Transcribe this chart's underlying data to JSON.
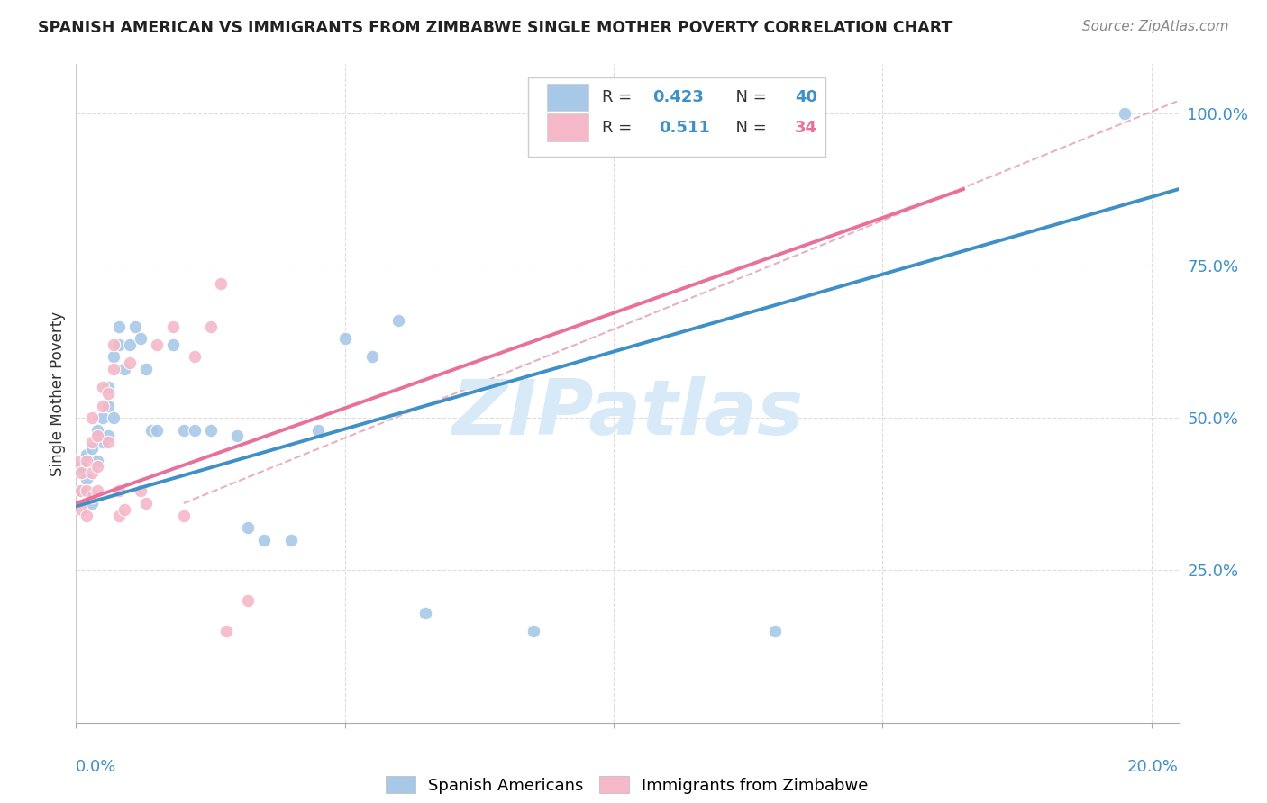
{
  "title": "SPANISH AMERICAN VS IMMIGRANTS FROM ZIMBABWE SINGLE MOTHER POVERTY CORRELATION CHART",
  "source": "Source: ZipAtlas.com",
  "ylabel": "Single Mother Poverty",
  "blue_color": "#a8c8e8",
  "pink_color": "#f4b8c8",
  "line_blue": "#4090c8",
  "line_pink": "#e8709a",
  "line_dashed_color": "#e8b0c0",
  "watermark_color": "#d8eaf8",
  "ytick_color": "#4090c8",
  "blue_r": "0.423",
  "blue_n": "40",
  "pink_r": "0.511",
  "pink_n": "34",
  "blue_scatter_x": [
    0.001,
    0.001,
    0.002,
    0.002,
    0.003,
    0.003,
    0.004,
    0.004,
    0.005,
    0.005,
    0.006,
    0.006,
    0.006,
    0.007,
    0.007,
    0.008,
    0.008,
    0.009,
    0.01,
    0.011,
    0.012,
    0.013,
    0.014,
    0.015,
    0.018,
    0.02,
    0.022,
    0.025,
    0.03,
    0.032,
    0.035,
    0.04,
    0.045,
    0.05,
    0.055,
    0.06,
    0.065,
    0.085,
    0.13,
    0.195
  ],
  "blue_scatter_y": [
    0.38,
    0.42,
    0.4,
    0.44,
    0.36,
    0.45,
    0.43,
    0.48,
    0.46,
    0.5,
    0.47,
    0.52,
    0.55,
    0.5,
    0.6,
    0.65,
    0.62,
    0.58,
    0.62,
    0.65,
    0.63,
    0.58,
    0.48,
    0.48,
    0.62,
    0.48,
    0.48,
    0.48,
    0.47,
    0.32,
    0.3,
    0.3,
    0.48,
    0.63,
    0.6,
    0.66,
    0.18,
    0.15,
    0.15,
    1.0
  ],
  "pink_scatter_x": [
    0.0,
    0.001,
    0.001,
    0.001,
    0.002,
    0.002,
    0.002,
    0.003,
    0.003,
    0.003,
    0.003,
    0.004,
    0.004,
    0.004,
    0.005,
    0.005,
    0.006,
    0.006,
    0.007,
    0.007,
    0.008,
    0.008,
    0.009,
    0.01,
    0.012,
    0.013,
    0.015,
    0.018,
    0.02,
    0.022,
    0.025,
    0.027,
    0.028,
    0.032
  ],
  "pink_scatter_y": [
    0.43,
    0.38,
    0.41,
    0.35,
    0.34,
    0.38,
    0.43,
    0.37,
    0.41,
    0.46,
    0.5,
    0.38,
    0.42,
    0.47,
    0.52,
    0.55,
    0.46,
    0.54,
    0.58,
    0.62,
    0.38,
    0.34,
    0.35,
    0.59,
    0.38,
    0.36,
    0.62,
    0.65,
    0.34,
    0.6,
    0.65,
    0.72,
    0.15,
    0.2
  ],
  "xlim": [
    0.0,
    0.205
  ],
  "ylim": [
    0.0,
    1.08
  ],
  "xticks": [
    0.0,
    0.05,
    0.1,
    0.15,
    0.2
  ],
  "ytick_positions": [
    0.25,
    0.5,
    0.75,
    1.0
  ],
  "ytick_labels": [
    "25.0%",
    "50.0%",
    "75.0%",
    "100.0%"
  ]
}
